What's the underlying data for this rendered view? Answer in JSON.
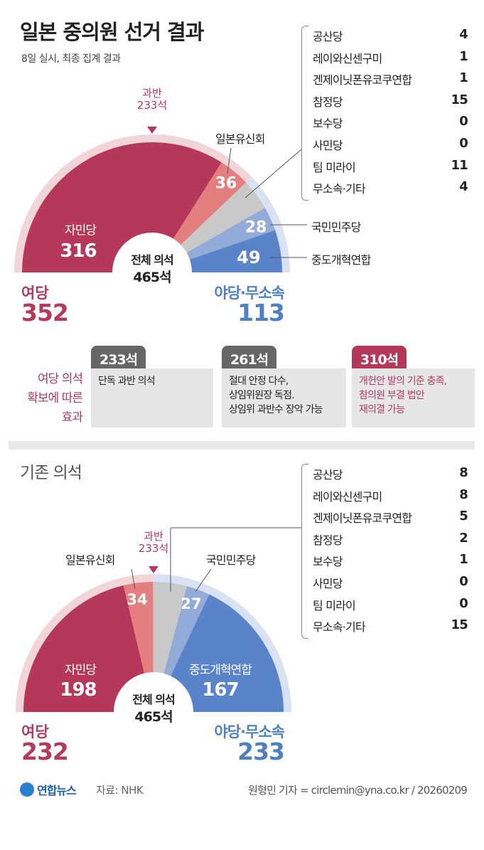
{
  "header": {
    "title": "일본 중의원 선거 결과",
    "subtitle": "8일 실시, 최종 집계 결과"
  },
  "colors": {
    "ldp": "#b5385a",
    "ishin": "#e3807f",
    "others": "#c9c9ca",
    "dpfp": "#93abd8",
    "cra": "#5a84c9",
    "ruling_ring": "#f1d5d9",
    "opp_ring": "#d9e2f2",
    "ruling_text": "#b33a5a",
    "opp_text": "#4f7fc0"
  },
  "chart_data": [
    {
      "type": "pie",
      "style": "half-donut",
      "title": "일본 중의원 선거 결과",
      "total_label": "전체 의석",
      "total": "465석",
      "majority": {
        "label": "과반",
        "value": "233석"
      },
      "categories": [
        "자민당",
        "일본유신회",
        "기타",
        "국민민주당",
        "중도개혁연합"
      ],
      "values": [
        316,
        36,
        36,
        28,
        49
      ],
      "value_labels": [
        "316",
        "36",
        "",
        "28",
        "49"
      ],
      "ruling": {
        "label": "여당",
        "value": "352"
      },
      "opposition": {
        "label": "야당·무소속",
        "value": "113"
      },
      "others_breakdown": [
        [
          "공산당",
          "4"
        ],
        [
          "레이와신센구미",
          "1"
        ],
        [
          "겐제이닛폰유코쿠연합",
          "1"
        ],
        [
          "참정당",
          "15"
        ],
        [
          "보수당",
          "0"
        ],
        [
          "사민당",
          "0"
        ],
        [
          "팀 미라이",
          "11"
        ],
        [
          "무소속·기타",
          "4"
        ]
      ]
    },
    {
      "type": "pie",
      "style": "half-donut",
      "title": "기존 의석",
      "total_label": "전체 의석",
      "total": "465석",
      "majority": {
        "label": "과반",
        "value": "233석"
      },
      "categories": [
        "자민당",
        "일본유신회",
        "기타",
        "국민민주당",
        "중도개혁연합"
      ],
      "values": [
        198,
        34,
        39,
        27,
        167
      ],
      "value_labels": [
        "198",
        "34",
        "",
        "27",
        "167"
      ],
      "ruling": {
        "label": "여당",
        "value": "232"
      },
      "opposition": {
        "label": "야당·무소속",
        "value": "233"
      },
      "others_breakdown": [
        [
          "공산당",
          "8"
        ],
        [
          "레이와신센구미",
          "8"
        ],
        [
          "겐제이닛폰유코쿠연합",
          "5"
        ],
        [
          "참정당",
          "2"
        ],
        [
          "보수당",
          "1"
        ],
        [
          "사민당",
          "0"
        ],
        [
          "팀 미라이",
          "0"
        ],
        [
          "무소속·기타",
          "15"
        ]
      ]
    }
  ],
  "effects": {
    "label": "여당 의석\n확보에 따른\n효과",
    "items": [
      {
        "seats": "233석",
        "text": "단독 과반 의석"
      },
      {
        "seats": "261석",
        "text": "절대 안정 다수,\n상임위원장 독점.\n상임위 과반수 장악 가능"
      },
      {
        "seats": "310석",
        "text": "개헌안 발의 기준 충족,\n참의원 부결 법안\n재의결 가능"
      }
    ]
  },
  "footer": {
    "logo": "연합뉴스",
    "source": "자료: NHK",
    "credit": "원형민 기자 = circlemin@yna.co.kr / 20260209"
  }
}
